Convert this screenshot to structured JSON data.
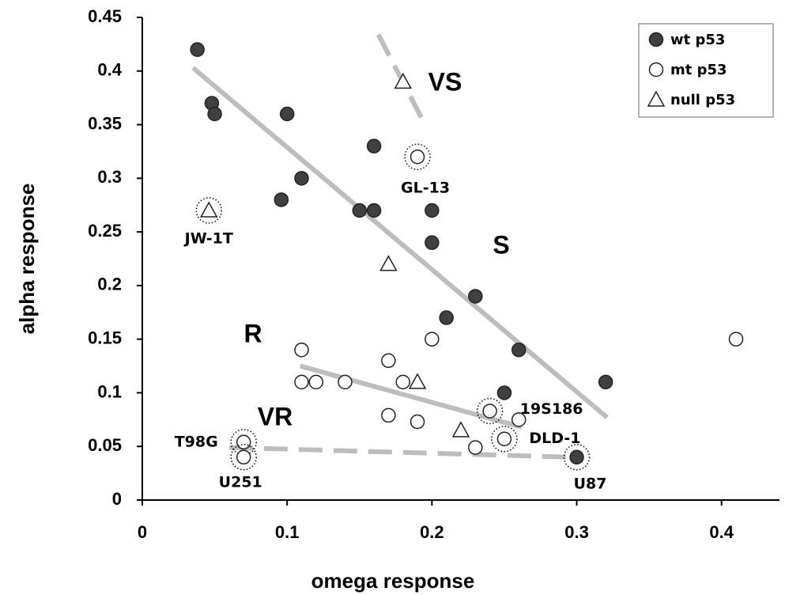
{
  "chart_data": {
    "type": "scatter",
    "x_label": "omega response",
    "y_label": "alpha response",
    "xlim": [
      0,
      0.44
    ],
    "ylim": [
      0,
      0.45
    ],
    "xticks": [
      0,
      0.1,
      0.2,
      0.3,
      0.4
    ],
    "yticks": [
      0,
      0.05,
      0.1,
      0.15,
      0.2,
      0.25,
      0.3,
      0.35,
      0.4,
      0.45
    ],
    "legend": "top-right",
    "series": [
      {
        "name": "wt p53",
        "marker": "circle",
        "color": "#404040",
        "x": [
          0.038,
          0.048,
          0.05,
          0.1,
          0.096,
          0.11,
          0.16,
          0.15,
          0.16,
          0.2,
          0.2,
          0.23,
          0.21,
          0.26,
          0.25,
          0.32,
          0.3
        ],
        "values": [
          0.42,
          0.37,
          0.36,
          0.36,
          0.28,
          0.3,
          0.33,
          0.27,
          0.27,
          0.27,
          0.24,
          0.19,
          0.17,
          0.14,
          0.1,
          0.11,
          0.04
        ],
        "labels": [
          null,
          null,
          null,
          null,
          null,
          null,
          null,
          null,
          null,
          null,
          null,
          null,
          null,
          null,
          null,
          null,
          "U87"
        ]
      },
      {
        "name": "mt p53",
        "marker": "circle",
        "color": "#ffffff",
        "x": [
          0.19,
          0.11,
          0.11,
          0.12,
          0.14,
          0.17,
          0.18,
          0.2,
          0.17,
          0.19,
          0.24,
          0.26,
          0.25,
          0.23,
          0.07,
          0.07,
          0.41
        ],
        "values": [
          0.32,
          0.14,
          0.11,
          0.11,
          0.11,
          0.13,
          0.11,
          0.15,
          0.079,
          0.073,
          0.083,
          0.075,
          0.057,
          0.049,
          0.054,
          0.04,
          0.15
        ],
        "labels": [
          "GL-13",
          null,
          null,
          null,
          null,
          null,
          null,
          null,
          null,
          null,
          "19S186",
          null,
          "DLD-1",
          null,
          "T98G",
          "U251",
          null
        ]
      },
      {
        "name": "null p53",
        "marker": "triangle",
        "color": "#ffffff",
        "x": [
          0.046,
          0.18,
          0.17,
          0.19,
          0.22
        ],
        "values": [
          0.27,
          0.39,
          0.22,
          0.11,
          0.065
        ],
        "labels": [
          "JW-1T",
          null,
          null,
          null,
          null
        ]
      }
    ],
    "trend_lines": [
      {
        "label": "VS",
        "dashed": true,
        "x": [
          0.163,
          0.196
        ],
        "y": [
          0.434,
          0.348
        ]
      },
      {
        "label": "S",
        "dashed": false,
        "x": [
          0.035,
          0.321
        ],
        "y": [
          0.403,
          0.077
        ]
      },
      {
        "label": "R",
        "dashed": false,
        "x": [
          0.109,
          0.262
        ],
        "y": [
          0.125,
          0.068
        ]
      },
      {
        "label": "VR",
        "dashed": true,
        "x": [
          0.06,
          0.295
        ],
        "y": [
          0.049,
          0.04
        ]
      }
    ]
  }
}
